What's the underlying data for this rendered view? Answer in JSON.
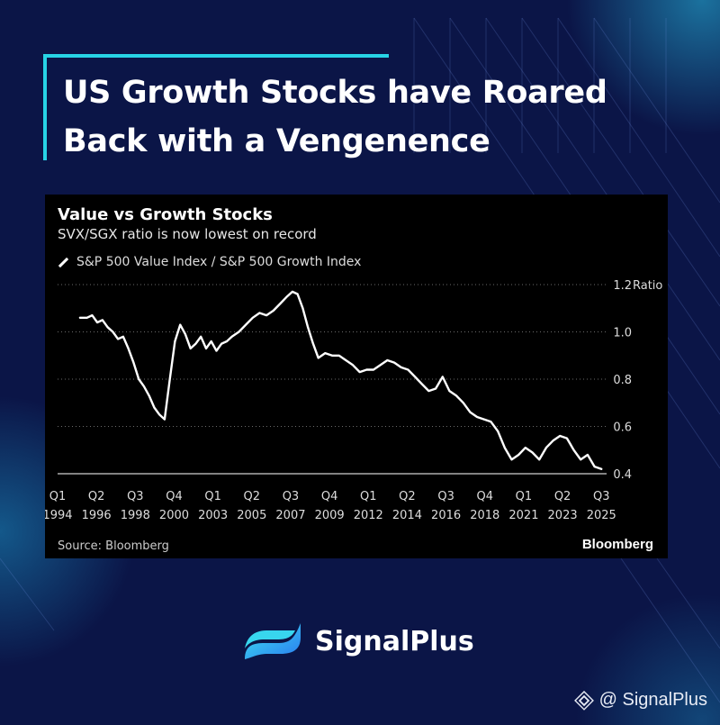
{
  "headline": "US Growth Stocks have Roared Back with a Vengenence",
  "brand": {
    "name": "SignalPlus",
    "accent": "#27d3e6"
  },
  "watermark": {
    "text": "@ SignalPlus",
    "icon": "binance-diamond-icon"
  },
  "chart_data": {
    "type": "line",
    "title": "Value vs Growth Stocks",
    "subtitle": "SVX/SGX ratio is now lowest on record",
    "ylabel": "Ratio",
    "ylim": [
      0.4,
      1.2
    ],
    "yticks": [
      0.4,
      0.6,
      0.8,
      1.0,
      1.2
    ],
    "ytick_labels": [
      "0.4",
      "0.6",
      "0.8",
      "1.0",
      "1.2"
    ],
    "xlim": [
      1994.0,
      2025.8
    ],
    "xtick_positions": [
      1994.0,
      1996.25,
      1998.5,
      2000.75,
      2003.0,
      2005.25,
      2007.5,
      2009.75,
      2012.0,
      2014.25,
      2016.5,
      2018.75,
      2021.0,
      2023.25,
      2025.5
    ],
    "xticks": [
      {
        "q": "Q1",
        "y": "1994"
      },
      {
        "q": "Q2",
        "y": "1996"
      },
      {
        "q": "Q3",
        "y": "1998"
      },
      {
        "q": "Q4",
        "y": "2000"
      },
      {
        "q": "Q1",
        "y": "2003"
      },
      {
        "q": "Q2",
        "y": "2005"
      },
      {
        "q": "Q3",
        "y": "2007"
      },
      {
        "q": "Q4",
        "y": "2009"
      },
      {
        "q": "Q1",
        "y": "2012"
      },
      {
        "q": "Q2",
        "y": "2014"
      },
      {
        "q": "Q3",
        "y": "2016"
      },
      {
        "q": "Q4",
        "y": "2018"
      },
      {
        "q": "Q1",
        "y": "2021"
      },
      {
        "q": "Q2",
        "y": "2023"
      },
      {
        "q": "Q3",
        "y": "2025"
      }
    ],
    "grid": true,
    "legend": "top-left",
    "series": [
      {
        "name": "S&P 500 Value Index / S&P 500 Growth Index",
        "color": "#ffffff",
        "x": [
          1995.3,
          1995.7,
          1996.0,
          1996.3,
          1996.6,
          1996.9,
          1997.2,
          1997.5,
          1997.8,
          1998.1,
          1998.4,
          1998.7,
          1999.0,
          1999.3,
          1999.6,
          1999.9,
          2000.2,
          2000.5,
          2000.8,
          2001.1,
          2001.4,
          2001.7,
          2002.0,
          2002.3,
          2002.6,
          2002.9,
          2003.2,
          2003.5,
          2003.8,
          2004.1,
          2004.5,
          2004.9,
          2005.3,
          2005.7,
          2006.1,
          2006.5,
          2006.9,
          2007.3,
          2007.6,
          2007.9,
          2008.2,
          2008.5,
          2008.8,
          2009.1,
          2009.5,
          2009.9,
          2010.3,
          2010.7,
          2011.1,
          2011.5,
          2011.9,
          2012.3,
          2012.7,
          2013.1,
          2013.5,
          2013.9,
          2014.3,
          2014.7,
          2015.1,
          2015.5,
          2015.9,
          2016.3,
          2016.7,
          2017.1,
          2017.5,
          2017.9,
          2018.3,
          2018.7,
          2019.1,
          2019.5,
          2019.9,
          2020.3,
          2020.7,
          2021.1,
          2021.5,
          2021.9,
          2022.3,
          2022.7,
          2023.1,
          2023.5,
          2023.9,
          2024.3,
          2024.7,
          2025.1,
          2025.5
        ],
        "values": [
          1.06,
          1.06,
          1.07,
          1.04,
          1.05,
          1.02,
          1.0,
          0.97,
          0.98,
          0.93,
          0.87,
          0.8,
          0.77,
          0.73,
          0.68,
          0.65,
          0.63,
          0.8,
          0.96,
          1.03,
          0.99,
          0.93,
          0.95,
          0.98,
          0.93,
          0.96,
          0.92,
          0.95,
          0.96,
          0.98,
          1.0,
          1.03,
          1.06,
          1.08,
          1.07,
          1.09,
          1.12,
          1.15,
          1.17,
          1.16,
          1.1,
          1.02,
          0.95,
          0.89,
          0.91,
          0.9,
          0.9,
          0.88,
          0.86,
          0.83,
          0.84,
          0.84,
          0.86,
          0.88,
          0.87,
          0.85,
          0.84,
          0.81,
          0.78,
          0.75,
          0.76,
          0.81,
          0.75,
          0.73,
          0.7,
          0.66,
          0.64,
          0.63,
          0.62,
          0.58,
          0.51,
          0.46,
          0.48,
          0.51,
          0.49,
          0.46,
          0.51,
          0.54,
          0.56,
          0.55,
          0.5,
          0.46,
          0.48,
          0.43,
          0.42
        ]
      }
    ]
  },
  "source": "Source: Bloomberg",
  "credit": "Bloomberg"
}
